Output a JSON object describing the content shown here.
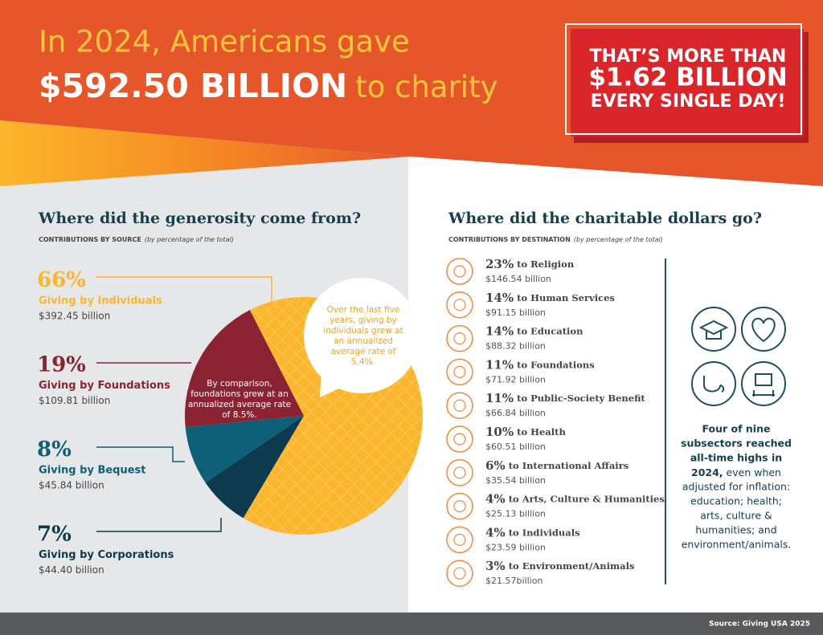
{
  "header": {
    "line1": "In 2024, Americans gave",
    "amount": "$592.50 BILLION",
    "line2": "to charity",
    "callout": [
      "THAT’S MORE THAN",
      "$1.62 BILLION",
      "EVERY SINGLE DAY!"
    ]
  },
  "chart_data": {
    "type": "pie",
    "title": "Where did the generosity come from?",
    "subtitle": "CONTRIBUTIONS BY SOURCE",
    "subtitle_note": "(by percentage of the total)",
    "categories": [
      "Giving by Individuals",
      "Giving by Foundations",
      "Giving by Bequest",
      "Giving by Corporations"
    ],
    "values": [
      66,
      19,
      8,
      7
    ],
    "value_labels": [
      "66%",
      "19%",
      "8%",
      "7%"
    ],
    "amounts": [
      "$392.45 billion",
      "$109.81 billion",
      "$45.84 billion",
      "$44.40 billion"
    ],
    "colors": [
      "#fbb62b",
      "#8b2332",
      "#0e5f78",
      "#0d3a4f"
    ],
    "annotations": [
      "Over the last five years, giving by individuals grew at an annualized average rate of 5.4%.",
      "By comparison, foundations grew at an annualized average rate of 8.5%."
    ]
  },
  "destinations": {
    "title": "Where did the charitable dollars go?",
    "subtitle": "CONTRIBUTIONS BY DESTINATION",
    "subtitle_note": "(by percentage of the total)",
    "items": [
      {
        "percent": "23%",
        "label": "to Religion",
        "amount": "$146.54 billion"
      },
      {
        "percent": "14%",
        "label": "to Human Services",
        "amount": "$91.15 billion"
      },
      {
        "percent": "14%",
        "label": "to Education",
        "amount": "$88.32 billion"
      },
      {
        "percent": "11%",
        "label": "to Foundations",
        "amount": "$71.92 billion"
      },
      {
        "percent": "11%",
        "label": "to Public-Society Benefit",
        "amount": "$66.84 billion"
      },
      {
        "percent": "10%",
        "label": "to Health",
        "amount": "$60.51 billion"
      },
      {
        "percent": "6%",
        "label": "to International Affairs",
        "amount": "$35.54 billion"
      },
      {
        "percent": "4%",
        "label": "to Arts, Culture & Humanities",
        "amount": "$25.13 billion"
      },
      {
        "percent": "4%",
        "label": "to Individuals",
        "amount": "$23.59 billion"
      },
      {
        "percent": "3%",
        "label": "to Environment/Animals",
        "amount": "$21.57billion"
      }
    ]
  },
  "note": {
    "bold": [
      "Four of nine",
      "subsectors reached",
      "all-time highs in"
    ],
    "bold_end": "2024,",
    "rest": [
      "even when",
      "adjusted for inflation:",
      "education; health;",
      "arts, culture &",
      "humanities; and",
      "environment/animals."
    ]
  },
  "footer": {
    "source": "Source: Giving USA 2025"
  }
}
